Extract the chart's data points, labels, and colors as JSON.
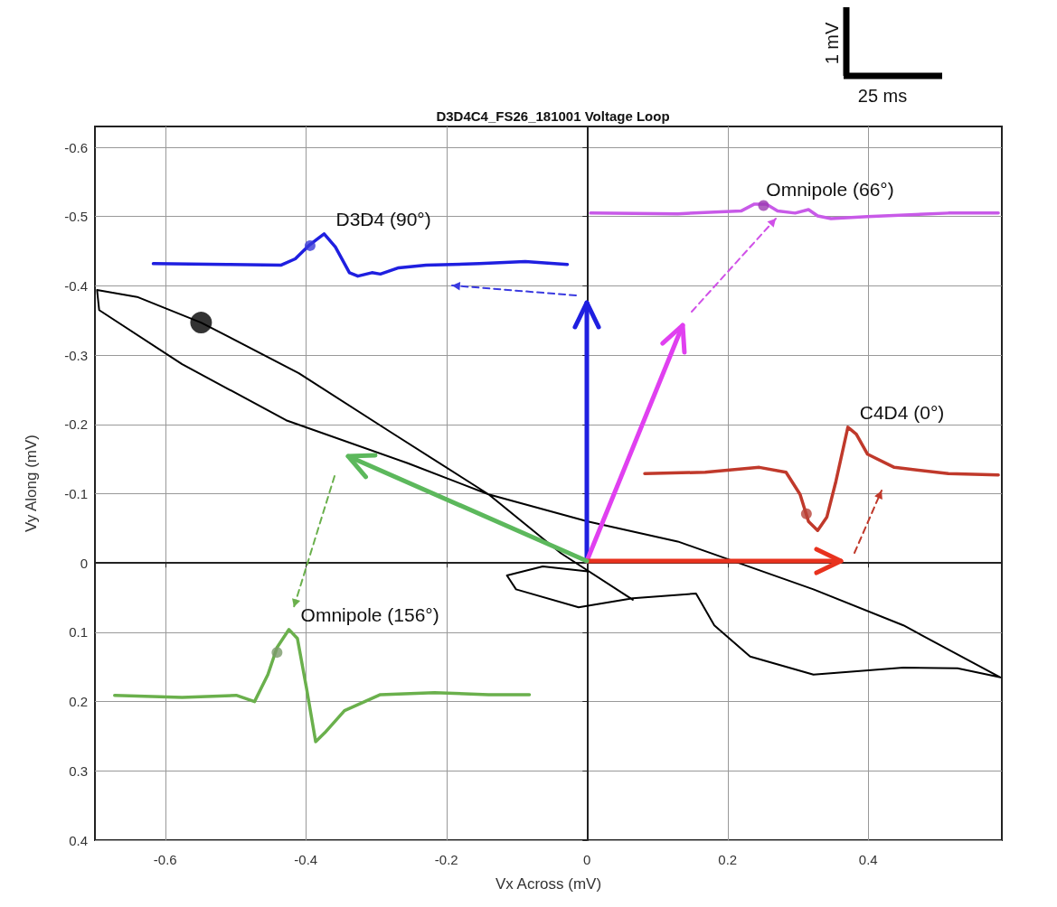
{
  "chart_data": {
    "type": "line",
    "title": "D3D4C4_FS26_181001 Voltage Loop",
    "xlabel": "Vx Across (mV)",
    "ylabel": "Vy Along (mV)",
    "xlim": [
      -0.7,
      0.59
    ],
    "ylim": [
      0.4,
      -0.63
    ],
    "xticks": [
      -0.6,
      -0.4,
      -0.2,
      0,
      0.2,
      0.4
    ],
    "yticks": [
      -0.6,
      -0.5,
      -0.4,
      -0.3,
      -0.2,
      -0.1,
      0,
      0.1,
      0.2,
      0.3,
      0.4
    ],
    "grid": true,
    "series": [
      {
        "color": "#000000",
        "x": [
          0.065,
          -0.037,
          -0.14,
          -0.281,
          -0.41,
          -0.549,
          -0.64,
          -0.697,
          -0.694,
          -0.576,
          -0.428,
          -0.255,
          -0.14,
          0.001,
          0.129,
          0.322,
          0.45,
          0.588,
          0.527,
          0.45,
          0.322,
          0.232,
          0.181,
          0.155,
          0.065,
          -0.012,
          -0.101,
          -0.114,
          -0.063,
          0.001
        ],
        "values": [
          0.053,
          -0.014,
          -0.099,
          -0.19,
          -0.274,
          -0.347,
          -0.384,
          -0.394,
          -0.365,
          -0.287,
          -0.206,
          -0.144,
          -0.099,
          -0.06,
          -0.031,
          0.038,
          0.09,
          0.165,
          0.152,
          0.151,
          0.161,
          0.135,
          0.09,
          0.044,
          0.051,
          0.064,
          0.038,
          0.018,
          0.005,
          0.012
        ]
      },
      {
        "type": "scatter",
        "color": "#000000",
        "x": [
          -0.549
        ],
        "values": [
          -0.347
        ]
      },
      {
        "name": "D3D4 (90°)",
        "color": "#1f1fe0",
        "x": [
          -0.617,
          -0.512,
          -0.435,
          -0.415,
          -0.396,
          -0.374,
          -0.358,
          -0.338,
          -0.326,
          -0.306,
          -0.294,
          -0.268,
          -0.229,
          -0.153,
          -0.088,
          -0.028
        ],
        "values": [
          -0.432,
          -0.431,
          -0.43,
          -0.439,
          -0.458,
          -0.475,
          -0.456,
          -0.419,
          -0.414,
          -0.419,
          -0.417,
          -0.426,
          -0.43,
          -0.432,
          -0.435,
          -0.431
        ]
      },
      {
        "type": "scatter",
        "color": "#3a3ad8",
        "x": [
          -0.394
        ],
        "values": [
          -0.458
        ]
      },
      {
        "name": "Omnipole (66°)",
        "color": "#c85ae8",
        "x": [
          0.005,
          0.129,
          0.219,
          0.238,
          0.255,
          0.271,
          0.296,
          0.315,
          0.328,
          0.347,
          0.399,
          0.514,
          0.585
        ],
        "values": [
          -0.505,
          -0.504,
          -0.508,
          -0.518,
          -0.518,
          -0.508,
          -0.505,
          -0.51,
          -0.501,
          -0.497,
          -0.5,
          -0.505,
          -0.505
        ]
      },
      {
        "type": "scatter",
        "color": "#9a3ab0",
        "x": [
          0.251
        ],
        "values": [
          -0.516
        ]
      },
      {
        "name": "C4D4 (0°)",
        "color": "#c0392b",
        "x": [
          0.082,
          0.168,
          0.245,
          0.283,
          0.303,
          0.315,
          0.328,
          0.341,
          0.354,
          0.371,
          0.383,
          0.399,
          0.437,
          0.514,
          0.585
        ],
        "values": [
          -0.129,
          -0.131,
          -0.138,
          -0.131,
          -0.099,
          -0.06,
          -0.047,
          -0.066,
          -0.118,
          -0.196,
          -0.186,
          -0.157,
          -0.138,
          -0.129,
          -0.127
        ]
      },
      {
        "type": "scatter",
        "color": "#b8433a",
        "x": [
          0.312
        ],
        "values": [
          -0.071
        ]
      },
      {
        "name": "Omnipole (156°)",
        "color": "#6ab04c",
        "x": [
          -0.672,
          -0.576,
          -0.499,
          -0.473,
          -0.454,
          -0.441,
          -0.424,
          -0.412,
          -0.399,
          -0.386,
          -0.373,
          -0.345,
          -0.294,
          -0.217,
          -0.14,
          -0.082
        ],
        "values": [
          0.191,
          0.194,
          0.191,
          0.2,
          0.161,
          0.122,
          0.096,
          0.109,
          0.181,
          0.258,
          0.245,
          0.213,
          0.19,
          0.187,
          0.19,
          0.19
        ]
      },
      {
        "type": "scatter",
        "color": "#7a9a6a",
        "x": [
          -0.441
        ],
        "values": [
          0.129
        ]
      }
    ],
    "annotations": [
      "1 mV",
      "25 ms"
    ]
  }
}
